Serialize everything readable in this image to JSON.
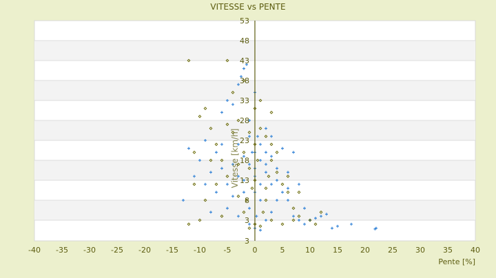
{
  "chart_data": {
    "type": "scatter",
    "title": "VITESSE vs PENTE",
    "xlabel": "Pente [%]",
    "ylabel": "Vitesse [km/h]",
    "xlim": [
      -40,
      40
    ],
    "ylim": [
      -2,
      53
    ],
    "x_ticks": [
      -40,
      -35,
      -30,
      -25,
      -20,
      -15,
      -10,
      -5,
      0,
      5,
      10,
      15,
      20,
      25,
      30,
      35,
      40
    ],
    "y_ticks": [
      53,
      48,
      43,
      38,
      33,
      28,
      23,
      18,
      13,
      8,
      3
    ],
    "y_axis_bottom_label": "3",
    "grid": true,
    "colors": {
      "series_blue": "#3a87d8",
      "series_olive": "#666600",
      "background": "#ecf0cd",
      "axis": "#5c5c10"
    },
    "series": [
      {
        "marker": "plus",
        "color": "#3a87d8",
        "points": [
          [
            0,
            20
          ],
          [
            1,
            18
          ],
          [
            -1,
            17
          ],
          [
            2,
            15
          ],
          [
            -2,
            19
          ],
          [
            3,
            12
          ],
          [
            -3,
            14
          ],
          [
            0,
            10
          ],
          [
            1,
            22
          ],
          [
            -1,
            24
          ],
          [
            2,
            20
          ],
          [
            4,
            16
          ],
          [
            -4,
            17
          ],
          [
            5,
            10
          ],
          [
            -5,
            12
          ],
          [
            0,
            14
          ],
          [
            1,
            8
          ],
          [
            -1,
            6
          ],
          [
            3,
            5
          ],
          [
            6,
            8
          ],
          [
            7,
            4
          ],
          [
            8,
            3
          ],
          [
            10,
            3
          ],
          [
            12,
            4
          ],
          [
            14,
            1
          ],
          [
            15,
            1.5
          ],
          [
            17.5,
            2
          ],
          [
            22,
            1
          ],
          [
            21.8,
            0.8
          ],
          [
            13,
            4.5
          ],
          [
            11,
            3.5
          ],
          [
            9,
            2
          ],
          [
            -6,
            22
          ],
          [
            -7,
            20
          ],
          [
            -8,
            15
          ],
          [
            -9,
            12
          ],
          [
            -10,
            18
          ],
          [
            -11,
            14
          ],
          [
            -13,
            8
          ],
          [
            -12,
            21
          ],
          [
            -6,
            30
          ],
          [
            -5,
            33
          ],
          [
            -3,
            37
          ],
          [
            -2,
            41
          ],
          [
            -1.5,
            42
          ],
          [
            -2.5,
            39
          ],
          [
            -4,
            32
          ],
          [
            0,
            35
          ],
          [
            -1,
            28
          ],
          [
            2,
            26
          ],
          [
            3,
            24
          ],
          [
            5,
            21
          ],
          [
            7,
            20
          ],
          [
            6,
            15
          ],
          [
            4,
            8
          ],
          [
            2,
            3
          ],
          [
            0,
            1
          ],
          [
            -1,
            2
          ],
          [
            1,
            0.5
          ],
          [
            -3,
            4
          ],
          [
            -5,
            6
          ],
          [
            -7,
            10
          ],
          [
            -8,
            5
          ],
          [
            -9,
            23
          ],
          [
            8,
            12
          ],
          [
            9,
            6
          ],
          [
            -2,
            10
          ],
          [
            1,
            12
          ],
          [
            0,
            16
          ],
          [
            -0.5,
            20
          ],
          [
            0.5,
            24
          ],
          [
            2,
            17
          ],
          [
            -2,
            13
          ],
          [
            3,
            19
          ],
          [
            -3,
            22
          ],
          [
            4,
            13
          ],
          [
            -4,
            9
          ],
          [
            6,
            11
          ],
          [
            -6,
            16
          ],
          [
            0.3,
            4
          ]
        ]
      },
      {
        "marker": "diamond",
        "color": "#666600",
        "points": [
          [
            -12,
            43
          ],
          [
            -5,
            43
          ],
          [
            -12,
            2
          ],
          [
            -11,
            20
          ],
          [
            -10,
            29
          ],
          [
            -9,
            31
          ],
          [
            -8,
            26
          ],
          [
            -7,
            22
          ],
          [
            -6,
            18
          ],
          [
            -5,
            14
          ],
          [
            -4,
            25
          ],
          [
            -3,
            28
          ],
          [
            -2,
            20
          ],
          [
            -1,
            16
          ],
          [
            0,
            22
          ],
          [
            1,
            26
          ],
          [
            2,
            24
          ],
          [
            3,
            18
          ],
          [
            4,
            15
          ],
          [
            5,
            12
          ],
          [
            6,
            10
          ],
          [
            7,
            6
          ],
          [
            8,
            4
          ],
          [
            10,
            3
          ],
          [
            12,
            5
          ],
          [
            11,
            2
          ],
          [
            -2,
            5
          ],
          [
            0,
            2
          ],
          [
            1,
            1.5
          ],
          [
            -1,
            1
          ],
          [
            3,
            3
          ],
          [
            5,
            2
          ],
          [
            2,
            8
          ],
          [
            -3,
            9
          ],
          [
            -4,
            35
          ],
          [
            -2,
            38
          ],
          [
            0,
            31
          ],
          [
            1,
            33
          ],
          [
            3,
            30
          ],
          [
            -7,
            12
          ],
          [
            -9,
            8
          ],
          [
            -10,
            3
          ],
          [
            -6,
            4
          ],
          [
            -8,
            18
          ],
          [
            -5,
            27
          ],
          [
            -1,
            25
          ],
          [
            0,
            13
          ],
          [
            2,
            11
          ],
          [
            4,
            20
          ],
          [
            6,
            14
          ],
          [
            8,
            10
          ],
          [
            -11,
            12
          ],
          [
            7,
            3
          ],
          [
            -1.5,
            8
          ],
          [
            1.5,
            5
          ],
          [
            -3,
            17
          ],
          [
            3,
            22
          ],
          [
            0.5,
            18
          ],
          [
            -0.5,
            11
          ],
          [
            2.5,
            14
          ]
        ]
      }
    ]
  }
}
